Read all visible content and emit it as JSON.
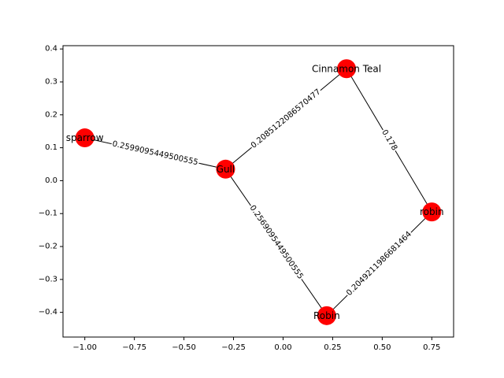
{
  "chart_data": {
    "type": "network",
    "xlim": [
      -1.11,
      0.86
    ],
    "ylim": [
      -0.475,
      0.41
    ],
    "x_ticks": [
      -1.0,
      -0.75,
      -0.5,
      -0.25,
      0.0,
      0.25,
      0.5,
      0.75
    ],
    "x_tick_labels": [
      "−1.00",
      "−0.75",
      "−0.50",
      "−0.25",
      "0.00",
      "0.25",
      "0.50",
      "0.75"
    ],
    "y_ticks": [
      0.4,
      0.3,
      0.2,
      0.1,
      0.0,
      -0.1,
      -0.2,
      -0.3,
      -0.4
    ],
    "y_tick_labels": [
      "0.4",
      "0.3",
      "0.2",
      "0.1",
      "0.0",
      "−0.1",
      "−0.2",
      "−0.3",
      "−0.4"
    ],
    "grid": false,
    "node_color": "#ff0000",
    "edge_color": "#000000",
    "nodes": [
      {
        "id": "sparrow",
        "label": "sparrow",
        "x": -1.0,
        "y": 0.13
      },
      {
        "id": "gull",
        "label": "Gull",
        "x": -0.29,
        "y": 0.035
      },
      {
        "id": "teal",
        "label": "Cinnamon Teal",
        "x": 0.32,
        "y": 0.34
      },
      {
        "id": "robin-lower",
        "label": "robin",
        "x": 0.75,
        "y": -0.095
      },
      {
        "id": "robin-upper",
        "label": "Robin",
        "x": 0.22,
        "y": -0.41
      }
    ],
    "edges": [
      {
        "source": "sparrow",
        "target": "gull",
        "label": "0.2599095449500555"
      },
      {
        "source": "gull",
        "target": "teal",
        "label": "0.2085122086570477"
      },
      {
        "source": "gull",
        "target": "robin-upper",
        "label": "0.2569095449500555"
      },
      {
        "source": "teal",
        "target": "robin-lower",
        "label": "0.178"
      },
      {
        "source": "robin-upper",
        "target": "robin-lower",
        "label": "0.2049211986681464"
      }
    ]
  }
}
